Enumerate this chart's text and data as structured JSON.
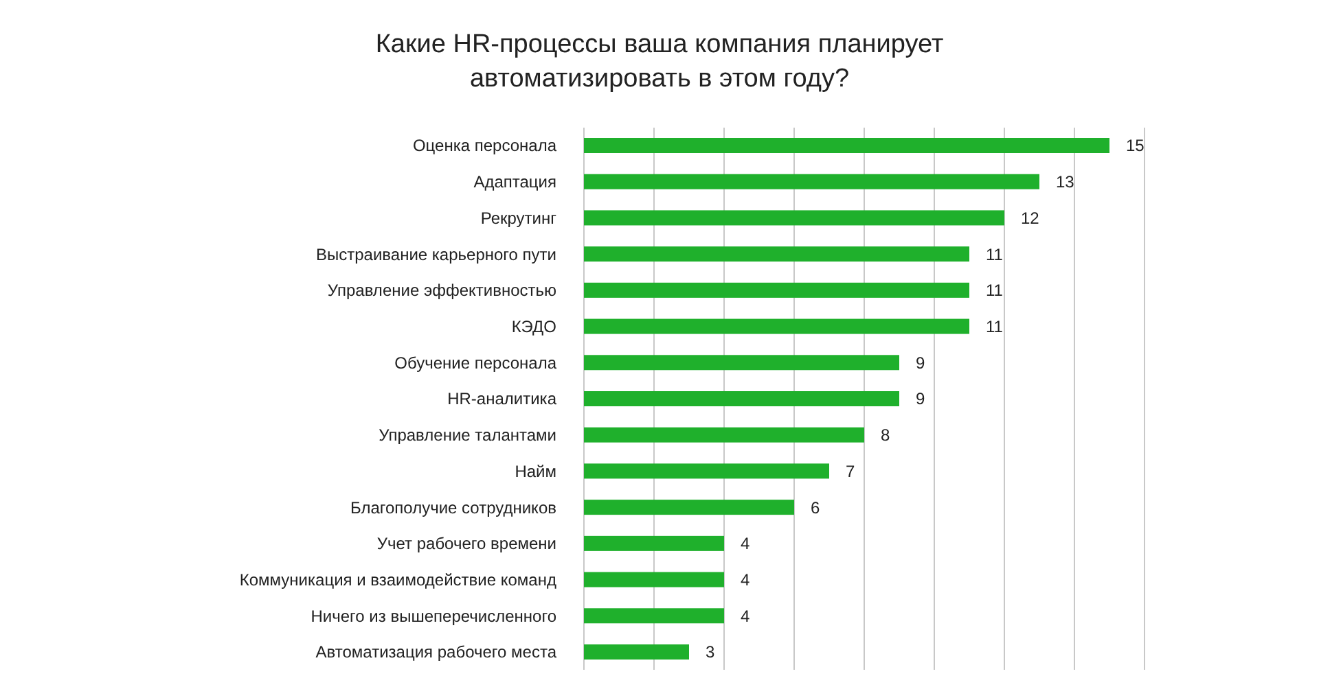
{
  "chart_data": {
    "type": "bar",
    "orientation": "horizontal",
    "title": "Какие HR-процессы ваша компания планирует автоматизировать в этом году?",
    "categories": [
      "Оценка персонала",
      "Адаптация",
      "Рекрутинг",
      "Выстраивание карьерного пути",
      "Управление эффективностью",
      "КЭДО",
      "Обучение персонала",
      "HR-аналитика",
      "Управление талантами",
      "Найм",
      "Благополучие сотрудников",
      "Учет рабочего времени",
      "Коммуникация и взаимодействие команд",
      "Ничего из вышеперечисленного",
      "Автоматизация рабочего места"
    ],
    "values": [
      15,
      13,
      12,
      11,
      11,
      11,
      9,
      9,
      8,
      7,
      6,
      4,
      4,
      4,
      3
    ],
    "color": "#1fb02c",
    "data_labels": true,
    "grid": "x",
    "tick_labels": "y",
    "xlim": [
      0,
      16
    ],
    "xticks": [
      {
        "value": 0,
        "label": null
      },
      {
        "value": 2,
        "label": null
      },
      {
        "value": 4,
        "label": null
      },
      {
        "value": 6,
        "label": null
      },
      {
        "value": 8,
        "label": null
      },
      {
        "value": 10,
        "label": null
      },
      {
        "value": 12,
        "label": null
      },
      {
        "value": 14,
        "label": null
      },
      {
        "value": 16,
        "label": null
      }
    ]
  }
}
